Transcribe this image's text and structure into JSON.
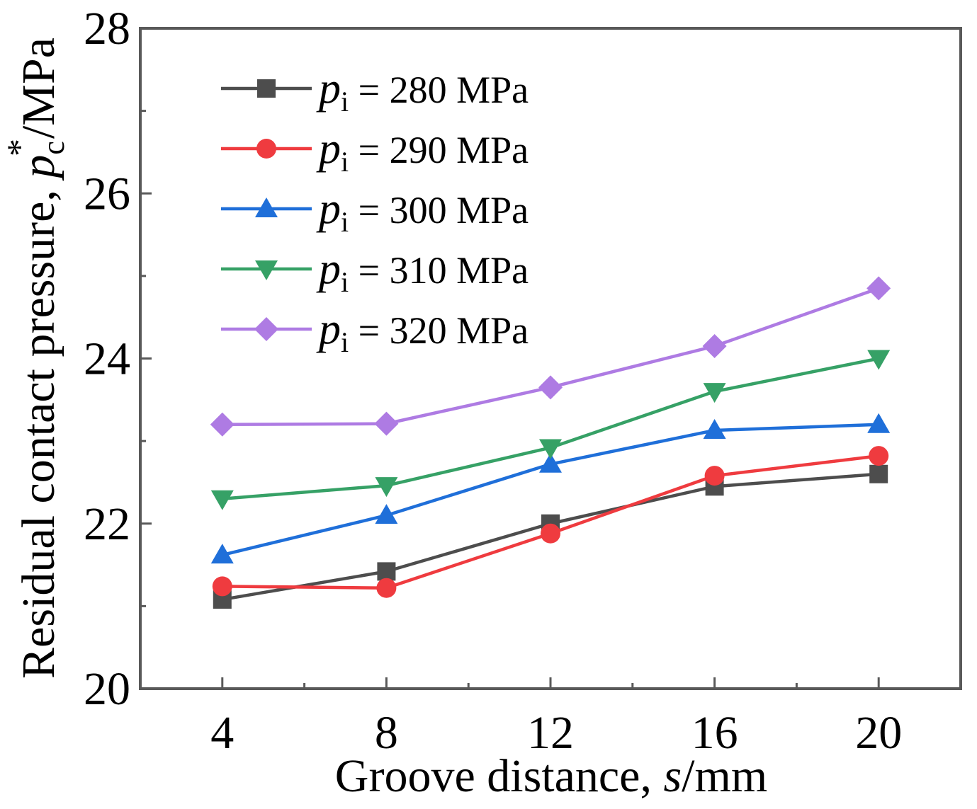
{
  "chart_data": {
    "type": "line",
    "title": "",
    "x": [
      4,
      8,
      12,
      16,
      20
    ],
    "xlim": [
      2,
      22
    ],
    "ylim": [
      20,
      28
    ],
    "xticks": [
      "4",
      "8",
      "12",
      "16",
      "20"
    ],
    "yticks": [
      "20",
      "22",
      "24",
      "26",
      "28"
    ],
    "xlabel": {
      "prefix": "Groove distance, ",
      "symbol": "s",
      "suffix": "/mm"
    },
    "ylabel": {
      "prefix": "Residual contact pressure, ",
      "symbol": "p",
      "subscript": "c",
      "superscript": "*",
      "suffix": "/MPa"
    },
    "legend_position": "top-left",
    "series": [
      {
        "name": "p_i = 280 MPa",
        "symbol": "p",
        "subscript": "i",
        "label": " = 280 MPa",
        "color": "#4d4d4d",
        "marker": "square",
        "values": [
          21.08,
          21.42,
          22.0,
          22.45,
          22.6
        ]
      },
      {
        "name": "p_i = 290 MPa",
        "symbol": "p",
        "subscript": "i",
        "label": " = 290 MPa",
        "color": "#ef3b3f",
        "marker": "circle",
        "values": [
          21.24,
          21.22,
          21.88,
          22.58,
          22.82
        ]
      },
      {
        "name": "p_i = 300 MPa",
        "symbol": "p",
        "subscript": "i",
        "label": " = 300 MPa",
        "color": "#1f6fd9",
        "marker": "triangle-up",
        "values": [
          21.62,
          22.1,
          22.72,
          23.13,
          23.2
        ]
      },
      {
        "name": "p_i = 310 MPa",
        "symbol": "p",
        "subscript": "i",
        "label": " = 310 MPa",
        "color": "#36a166",
        "marker": "triangle-down",
        "values": [
          22.3,
          22.46,
          22.92,
          23.6,
          24.0
        ]
      },
      {
        "name": "p_i = 320 MPa",
        "symbol": "p",
        "subscript": "i",
        "label": " = 320 MPa",
        "color": "#ae7be3",
        "marker": "diamond",
        "values": [
          23.2,
          23.21,
          23.65,
          24.15,
          24.85
        ]
      }
    ]
  }
}
